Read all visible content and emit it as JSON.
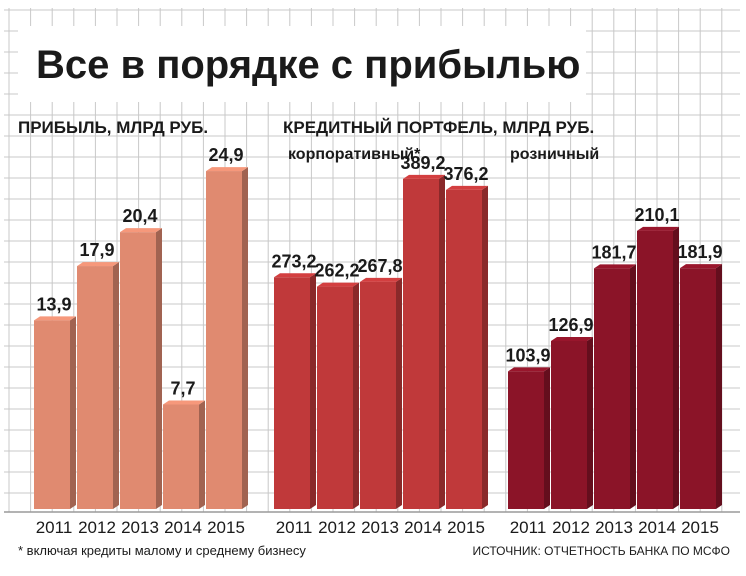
{
  "title": "Все в порядке с прибылью",
  "footnote": "* включая кредиты малому и среднему бизнесу",
  "source": "ИСТОЧНИК: ОТЧЕТНОСТЬ БАНКА ПО МСФО",
  "chart_data": [
    {
      "type": "bar",
      "title": "ПРИБЫЛЬ, МЛРД РУБ.",
      "subtitle": "",
      "categories": [
        "2011",
        "2012",
        "2013",
        "2014",
        "2015"
      ],
      "values": [
        13.9,
        17.9,
        20.4,
        7.7,
        24.9
      ],
      "labels": [
        "13,9",
        "17,9",
        "20,4",
        "7,7",
        "24,9"
      ],
      "ylim": [
        0,
        28
      ],
      "color": "#e08a70",
      "grid": true
    },
    {
      "type": "bar",
      "title": "КРЕДИТНЫЙ ПОРТФЕЛЬ, МЛРД РУБ.",
      "subtitle": "корпоративный*",
      "categories": [
        "2011",
        "2012",
        "2013",
        "2014",
        "2015"
      ],
      "values": [
        273.2,
        262.2,
        267.8,
        389.2,
        376.2
      ],
      "labels": [
        "273,2",
        "262,2",
        "267,8",
        "389,2",
        "376,2"
      ],
      "ylim": [
        0,
        448
      ],
      "color": "#c0393a",
      "grid": true
    },
    {
      "type": "bar",
      "title": "",
      "subtitle": "розничный",
      "categories": [
        "2011",
        "2012",
        "2013",
        "2014",
        "2015"
      ],
      "values": [
        103.9,
        126.9,
        181.7,
        210.1,
        181.9
      ],
      "labels": [
        "103,9",
        "126,9",
        "181,7",
        "210,1",
        "181,9"
      ],
      "ylim": [
        0,
        287
      ],
      "color": "#8b1428",
      "grid": true
    }
  ]
}
